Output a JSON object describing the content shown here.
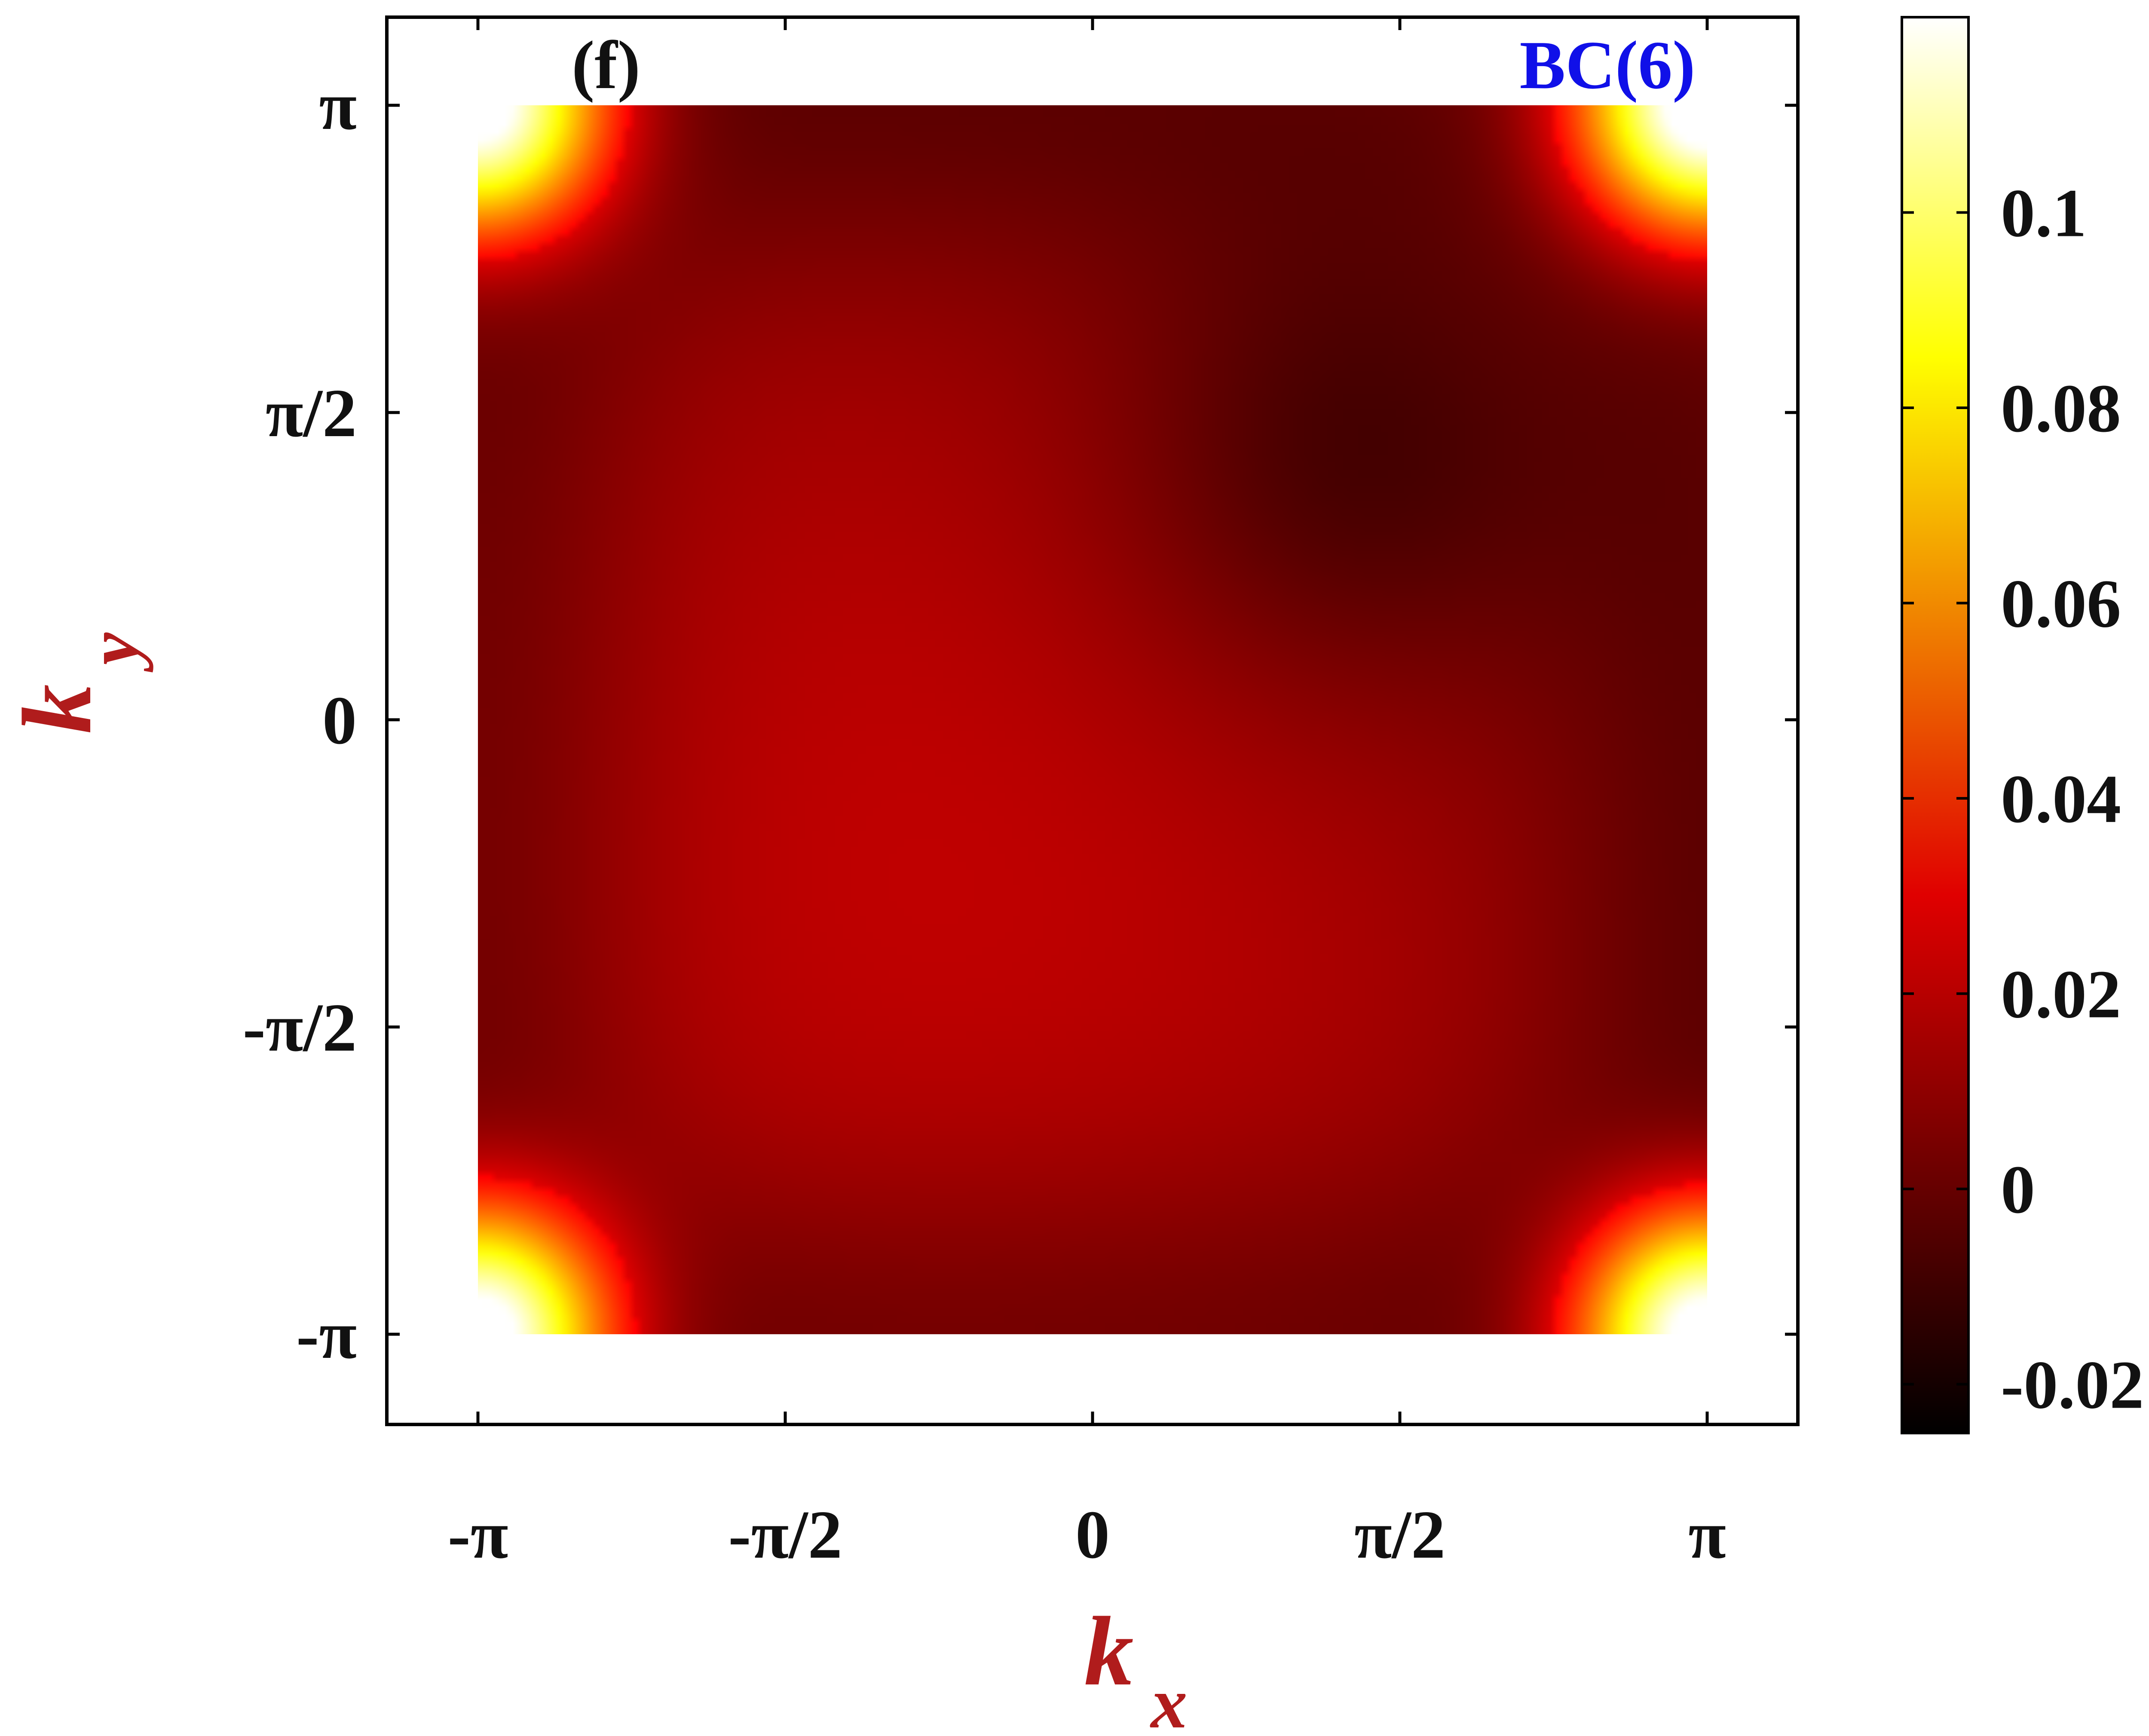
{
  "chart_data": {
    "type": "heatmap",
    "panel_label": "(f)",
    "panel_tag": "BC(6)",
    "xlabel": {
      "main": "k",
      "sub": "x"
    },
    "ylabel": {
      "main": "k",
      "sub": "y"
    },
    "xlim": [
      -3.14159,
      3.14159
    ],
    "ylim": [
      -3.14159,
      3.14159
    ],
    "x_ticks": [
      {
        "value": -3.14159,
        "label": "-π"
      },
      {
        "value": -1.5708,
        "label": "-π/2"
      },
      {
        "value": 0,
        "label": "0"
      },
      {
        "value": 1.5708,
        "label": "π/2"
      },
      {
        "value": 3.14159,
        "label": "π"
      }
    ],
    "y_ticks": [
      {
        "value": -3.14159,
        "label": "-π"
      },
      {
        "value": -1.5708,
        "label": "-π/2"
      },
      {
        "value": 0,
        "label": "0"
      },
      {
        "value": 1.5708,
        "label": "π/2"
      },
      {
        "value": 3.14159,
        "label": "π"
      }
    ],
    "colorbar": {
      "colormap": "hot",
      "range": [
        -0.025,
        0.12
      ],
      "ticks": [
        {
          "value": 0.1,
          "label": "0.1"
        },
        {
          "value": 0.08,
          "label": "0.08"
        },
        {
          "value": 0.06,
          "label": "0.06"
        },
        {
          "value": 0.04,
          "label": "0.04"
        },
        {
          "value": 0.02,
          "label": "0.02"
        },
        {
          "value": 0,
          "label": "0"
        },
        {
          "value": -0.02,
          "label": "-0.02"
        }
      ]
    },
    "features": [
      {
        "kx": -3.14159,
        "ky": 3.14159,
        "value": 0.12,
        "note": "corner maximum"
      },
      {
        "kx": 3.14159,
        "ky": 3.14159,
        "value": 0.12,
        "note": "corner maximum"
      },
      {
        "kx": -3.14159,
        "ky": -3.14159,
        "value": 0.12,
        "note": "corner maximum"
      },
      {
        "kx": 3.14159,
        "ky": -3.14159,
        "value": 0.12,
        "note": "corner maximum"
      },
      {
        "kx": -0.8,
        "ky": -0.8,
        "value": 0.02,
        "note": "central red region"
      },
      {
        "kx": 0.8,
        "ky": 2.0,
        "value": -0.02,
        "note": "dark minimum"
      },
      {
        "kx": 2.0,
        "ky": 0.8,
        "value": -0.02,
        "note": "dark minimum"
      },
      {
        "kx": -3.0,
        "ky": 0,
        "value": -0.015,
        "note": "dark edge"
      },
      {
        "kx": 0,
        "ky": -3.0,
        "value": -0.015,
        "note": "dark edge"
      }
    ],
    "colors": {
      "axis_title": "#b01c1c",
      "panel_tag": "#1010e8",
      "frame": "#000000"
    }
  }
}
